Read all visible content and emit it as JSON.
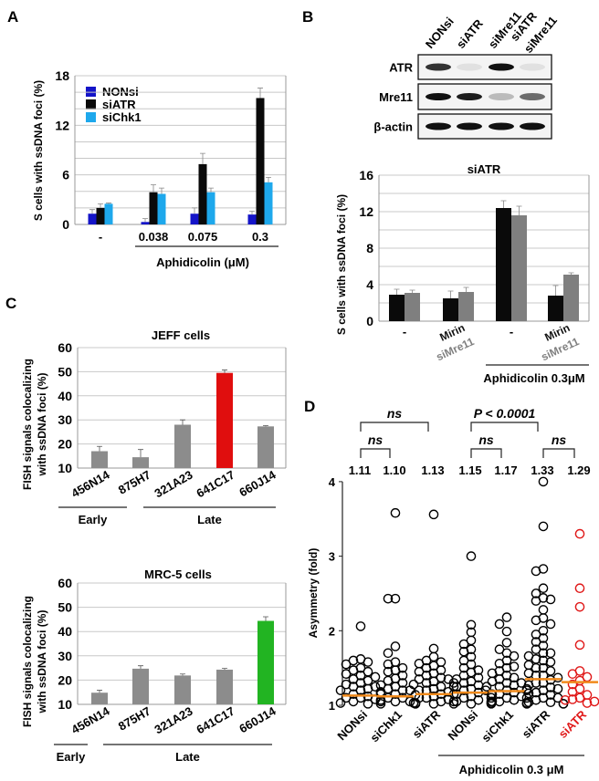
{
  "figure": {
    "panel_labels": [
      "A",
      "B",
      "C",
      "D"
    ]
  },
  "western_blot": {
    "lanes": [
      [
        "NONsi"
      ],
      [
        "siATR"
      ],
      [
        "siMre11"
      ],
      [
        "siATR",
        "siMre11"
      ]
    ],
    "rows": [
      {
        "label": "ATR",
        "band_intensity": [
          0.85,
          0.08,
          1.0,
          0.08
        ]
      },
      {
        "label": "Mre11",
        "band_intensity": [
          1.0,
          0.95,
          0.25,
          0.6
        ]
      },
      {
        "label": "β-actin",
        "band_intensity": [
          1.0,
          1.0,
          1.0,
          1.0
        ]
      }
    ]
  },
  "chart_data": [
    {
      "id": "A",
      "type": "bar",
      "title": "",
      "ylabel": "S cells with ssDNA foci (%)",
      "ylim": [
        0,
        18
      ],
      "yticks": [
        0,
        6,
        12,
        18
      ],
      "grid_step": 2,
      "grid": true,
      "categories": [
        [
          "-"
        ],
        [
          "0.038"
        ],
        [
          "0.075"
        ],
        [
          "0.3"
        ]
      ],
      "group_label": "Aphidicolin (μM)",
      "legend": "top-left",
      "series": [
        {
          "name": "NONsi",
          "color": "#1414c8",
          "values": [
            1.3,
            0.3,
            1.3,
            1.2
          ],
          "errors": [
            0.5,
            0.4,
            0.7,
            0.4
          ]
        },
        {
          "name": "siATR",
          "color": "#0a0a0a",
          "values": [
            2.0,
            3.9,
            7.3,
            15.3
          ],
          "errors": [
            0.5,
            0.9,
            1.3,
            1.2
          ]
        },
        {
          "name": "siChk1",
          "color": "#1ea8ec",
          "values": [
            2.5,
            3.7,
            3.9,
            5.1
          ],
          "errors": [
            0.1,
            0.7,
            0.5,
            0.6
          ]
        }
      ]
    },
    {
      "id": "B",
      "type": "bar",
      "title": "siATR",
      "ylabel": "S cells with ssDNA foci (%)",
      "ylim": [
        0,
        16
      ],
      "yticks": [
        0,
        4,
        8,
        12,
        16
      ],
      "grid_step": 2,
      "grid": true,
      "categories": [
        [
          "-"
        ],
        [
          "Mirin",
          "siMre11"
        ],
        [
          "-"
        ],
        [
          "Mirin",
          "siMre11"
        ]
      ],
      "category_colors": [
        "#111111",
        "#808080"
      ],
      "group_label": "Aphidicolin 0.3μM",
      "series": [
        {
          "name": "black",
          "color": "#0a0a0a",
          "values": [
            2.9,
            2.5,
            12.4,
            2.8
          ],
          "errors": [
            0.6,
            0.8,
            0.8,
            1.1
          ]
        },
        {
          "name": "gray",
          "color": "#7f7f7f",
          "values": [
            3.1,
            3.2,
            11.6,
            5.1
          ],
          "errors": [
            0.3,
            0.5,
            1.0,
            0.2
          ]
        }
      ]
    },
    {
      "id": "C-JEFF",
      "type": "bar",
      "title": "JEFF cells",
      "ylabel": [
        "FISH signals colocalizing",
        "with ssDNA foci (%)"
      ],
      "ylim": [
        10,
        60
      ],
      "yticks": [
        10,
        20,
        30,
        40,
        50,
        60
      ],
      "grid_step": 10,
      "grid": true,
      "categories": [
        [
          "456N14"
        ],
        [
          "875H7"
        ],
        [
          "321A23"
        ],
        [
          "641C17"
        ],
        [
          "660J14"
        ]
      ],
      "groups": [
        {
          "label": "Early",
          "span": [
            0,
            1
          ]
        },
        {
          "label": "Late",
          "span": [
            2,
            4
          ]
        }
      ],
      "series": [
        {
          "name": "JEFF",
          "colors": [
            "#8c8c8c",
            "#8c8c8c",
            "#8c8c8c",
            "#e00e0e",
            "#8c8c8c"
          ],
          "values": [
            17,
            14.5,
            28,
            49.5,
            27.3
          ],
          "errors": [
            2,
            3.2,
            2,
            1.2,
            0.3
          ]
        }
      ]
    },
    {
      "id": "C-MRC5",
      "type": "bar",
      "title": "MRC-5  cells",
      "ylabel": [
        "FISH signals colocalizing",
        "with ssDNA foci (%)"
      ],
      "ylim": [
        10,
        60
      ],
      "yticks": [
        10,
        20,
        30,
        40,
        50,
        60
      ],
      "grid_step": 10,
      "grid": true,
      "categories": [
        [
          "456N14"
        ],
        [
          "875H7"
        ],
        [
          "321A23"
        ],
        [
          "641C17"
        ],
        [
          "660J14"
        ]
      ],
      "groups": [
        {
          "label": "Early",
          "span": [
            0,
            0
          ]
        },
        {
          "label": "Late",
          "span": [
            1,
            4
          ]
        }
      ],
      "series": [
        {
          "name": "MRC-5",
          "colors": [
            "#8c8c8c",
            "#8c8c8c",
            "#8c8c8c",
            "#8c8c8c",
            "#22b422"
          ],
          "values": [
            14.8,
            24.7,
            21.9,
            24.3,
            44.4
          ],
          "errors": [
            1,
            1.2,
            0.6,
            0.5,
            1.7
          ]
        }
      ]
    },
    {
      "id": "D",
      "type": "scatter",
      "ylabel": "Asymmetry (fold)",
      "ylim": [
        1,
        4
      ],
      "yticks": [
        1,
        2,
        3,
        4
      ],
      "categories": [
        "NONsi",
        "siChk1",
        "siATR",
        "NONsi",
        "siChk1",
        "siATR",
        "siATR"
      ],
      "category_colors": [
        "#000",
        "#000",
        "#000",
        "#000",
        "#000",
        "#000",
        "#e01818"
      ],
      "median_color": "#f08a1c",
      "means_label": [
        "1.11",
        "1.10",
        "1.13",
        "1.15",
        "1.17",
        "1.33",
        "1.29"
      ],
      "medians": [
        1.13,
        1.12,
        1.15,
        1.17,
        1.19,
        1.35,
        1.31
      ],
      "comparisons": [
        {
          "label": "ns",
          "pair": [
            0,
            2
          ],
          "level": 2
        },
        {
          "label": "ns",
          "pair": [
            0,
            1
          ],
          "level": 1
        },
        {
          "label": "P < 0.0001",
          "pair": [
            3,
            5
          ],
          "level": 2
        },
        {
          "label": "ns",
          "pair": [
            3,
            4
          ],
          "level": 1
        },
        {
          "label": "ns",
          "pair": [
            5,
            6
          ],
          "level": 1
        }
      ],
      "group_label": "Aphidicolin 0.3 μM",
      "group_span": [
        3,
        6
      ],
      "points": [
        [
          2.06,
          1.62,
          1.6,
          1.58,
          1.55,
          1.5,
          1.47,
          1.45,
          1.42,
          1.4,
          1.38,
          1.35,
          1.33,
          1.3,
          1.28,
          1.25,
          1.22,
          1.2,
          1.18,
          1.15,
          1.12,
          1.1,
          1.08,
          1.05,
          1.03,
          1.02,
          1.02,
          1.05,
          1.1,
          1.15,
          1.2,
          1.25
        ],
        [
          3.58,
          2.43,
          2.43,
          1.79,
          1.7,
          1.58,
          1.55,
          1.5,
          1.47,
          1.45,
          1.4,
          1.36,
          1.33,
          1.3,
          1.27,
          1.25,
          1.22,
          1.2,
          1.17,
          1.14,
          1.1,
          1.07,
          1.05,
          1.03,
          1.02,
          1.02,
          1.05,
          1.1,
          1.15,
          1.2
        ],
        [
          3.56,
          1.76,
          1.65,
          1.6,
          1.58,
          1.56,
          1.53,
          1.5,
          1.47,
          1.45,
          1.43,
          1.4,
          1.37,
          1.35,
          1.32,
          1.3,
          1.28,
          1.25,
          1.22,
          1.2,
          1.18,
          1.15,
          1.12,
          1.1,
          1.08,
          1.05,
          1.03,
          1.02,
          1.02,
          1.05,
          1.1,
          1.15,
          1.2,
          1.25,
          1.3,
          1.35
        ],
        [
          3.0,
          2.08,
          1.98,
          1.87,
          1.82,
          1.75,
          1.72,
          1.65,
          1.6,
          1.55,
          1.5,
          1.47,
          1.44,
          1.4,
          1.37,
          1.35,
          1.32,
          1.3,
          1.27,
          1.25,
          1.22,
          1.2,
          1.17,
          1.15,
          1.12,
          1.1,
          1.07,
          1.05,
          1.03,
          1.02,
          1.02,
          1.05,
          1.1,
          1.15,
          1.2
        ],
        [
          2.18,
          2.09,
          1.99,
          1.84,
          1.75,
          1.7,
          1.66,
          1.6,
          1.56,
          1.52,
          1.5,
          1.46,
          1.43,
          1.4,
          1.37,
          1.35,
          1.32,
          1.3,
          1.27,
          1.25,
          1.22,
          1.2,
          1.17,
          1.15,
          1.12,
          1.1,
          1.07,
          1.05,
          1.03,
          1.02,
          1.02,
          1.05,
          1.1,
          1.15,
          1.2,
          1.25,
          1.3
        ],
        [
          4.0,
          3.4,
          2.83,
          2.8,
          2.57,
          2.5,
          2.44,
          2.42,
          2.4,
          2.28,
          2.17,
          2.14,
          2.09,
          2.0,
          1.95,
          1.9,
          1.85,
          1.8,
          1.75,
          1.7,
          1.66,
          1.62,
          1.58,
          1.54,
          1.5,
          1.46,
          1.43,
          1.4,
          1.37,
          1.34,
          1.3,
          1.27,
          1.24,
          1.2,
          1.17,
          1.14,
          1.1,
          1.07,
          1.04,
          1.02,
          1.02,
          1.04,
          1.1,
          1.16,
          1.22,
          1.3,
          1.4,
          1.5,
          1.6,
          1.7
        ],
        [
          3.3,
          2.57,
          2.32,
          1.81,
          1.46,
          1.42,
          1.38,
          1.33,
          1.28,
          1.22,
          1.18,
          1.14,
          1.1,
          1.07,
          1.05,
          1.03,
          1.08
        ]
      ]
    }
  ]
}
